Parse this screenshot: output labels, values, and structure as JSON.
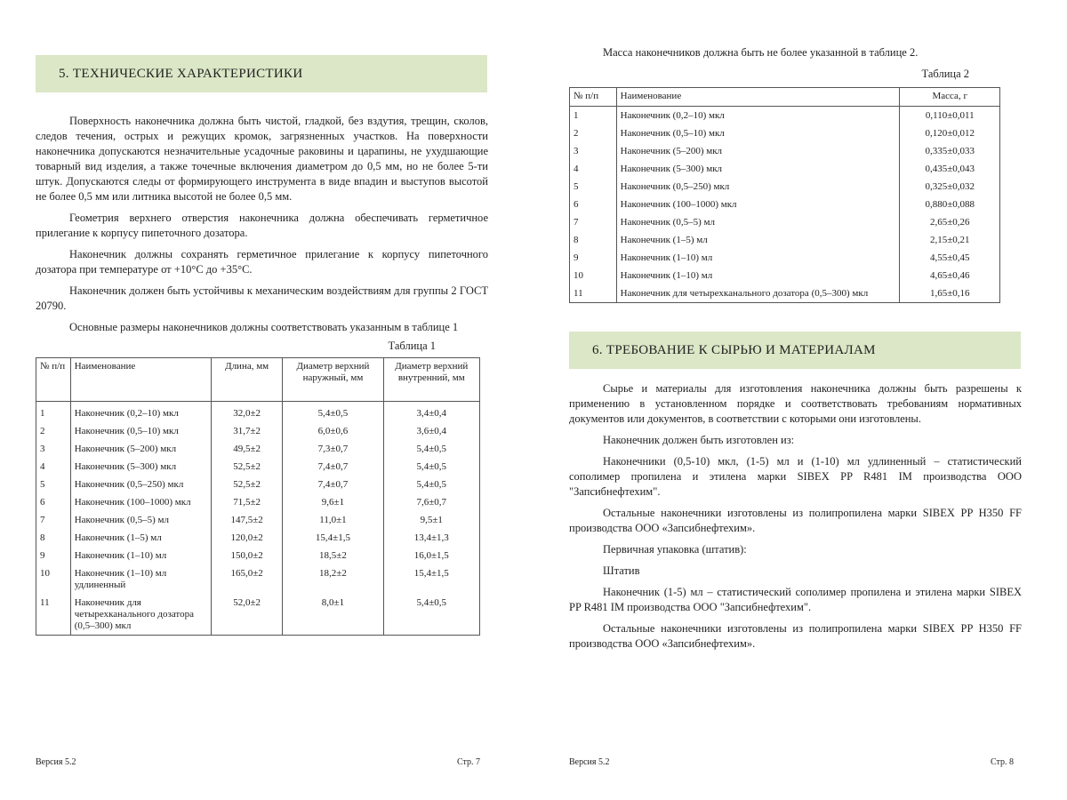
{
  "left": {
    "heading": "5.  ТЕХНИЧЕСКИЕ ХАРАКТЕРИСТИКИ",
    "paragraphs": [
      "Поверхность наконечника должна быть чистой, гладкой, без вздутия, трещин, сколов, следов течения, острых и режущих кромок, загрязненных участков. На поверхности наконечника допускаются незначительные усадочные раковины и царапины, не ухудшающие товарный вид изделия, а также точечные включения диаметром до 0,5 мм, но не более 5-ти штук. Допускаются следы от формирующего инструмента в виде впадин и выступов высотой не более 0,5 мм или литника высотой не более 0,5 мм.",
      "Геометрия верхнего отверстия наконечника должна обеспечивать герметичное прилегание к корпусу пипеточного дозатора.",
      "Наконечник должны сохранять герметичное прилегание к корпусу пипеточного дозатора при температуре от +10°С до +35°С.",
      "Наконечник должен быть устойчивы к механическим воздействиям для группы 2 ГОСТ 20790.",
      "Основные размеры наконечников должны соответствовать указанным в таблице 1"
    ],
    "table_caption": "Таблица 1",
    "table": {
      "header": [
        "№ п/п",
        "Наименование",
        "Длина, мм",
        "Диаметр верхний наружный, мм",
        "Диаметр верхний внутренний, мм"
      ],
      "rows": [
        [
          "1",
          "Наконечник (0,2–10) мкл",
          "32,0±2",
          "5,4±0,5",
          "3,4±0,4"
        ],
        [
          "2",
          "Наконечник (0,5–10) мкл",
          "31,7±2",
          "6,0±0,6",
          "3,6±0,4"
        ],
        [
          "3",
          "Наконечник (5–200) мкл",
          "49,5±2",
          "7,3±0,7",
          "5,4±0,5"
        ],
        [
          "4",
          "Наконечник (5–300) мкл",
          "52,5±2",
          "7,4±0,7",
          "5,4±0,5"
        ],
        [
          "5",
          "Наконечник (0,5–250) мкл",
          "52,5±2",
          "7,4±0,7",
          "5,4±0,5"
        ],
        [
          "6",
          "Наконечник (100–1000) мкл",
          "71,5±2",
          "9,6±1",
          "7,6±0,7"
        ],
        [
          "7",
          "Наконечник (0,5–5) мл",
          "147,5±2",
          "11,0±1",
          "9,5±1"
        ],
        [
          "8",
          "Наконечник (1–5) мл",
          "120,0±2",
          "15,4±1,5",
          "13,4±1,3"
        ],
        [
          "9",
          "Наконечник (1–10) мл",
          "150,0±2",
          "18,5±2",
          "16,0±1,5"
        ],
        [
          "10",
          "Наконечник (1–10) мл удлиненный",
          "165,0±2",
          "18,2±2",
          "15,4±1,5"
        ],
        [
          "11",
          "Наконечник для четырехканального дозатора (0,5–300) мкл",
          "52,0±2",
          "8,0±1",
          "5,4±0,5"
        ]
      ]
    },
    "footer": {
      "version": "Версия 5.2",
      "page": "Стр. 7"
    }
  },
  "right": {
    "intro": "Масса наконечников должна быть не более указанной в таблице 2.",
    "table_caption": "Таблица 2",
    "table": {
      "header": [
        "№ п/п",
        "Наименование",
        "Масса, г"
      ],
      "rows": [
        [
          "1",
          "Наконечник (0,2–10) мкл",
          "0,110±0,011"
        ],
        [
          "2",
          "Наконечник (0,5–10) мкл",
          "0,120±0,012"
        ],
        [
          "3",
          "Наконечник (5–200) мкл",
          "0,335±0,033"
        ],
        [
          "4",
          "Наконечник (5–300) мкл",
          "0,435±0,043"
        ],
        [
          "5",
          "Наконечник (0,5–250) мкл",
          "0,325±0,032"
        ],
        [
          "6",
          "Наконечник (100–1000) мкл",
          "0,880±0,088"
        ],
        [
          "7",
          "Наконечник (0,5–5) мл",
          "2,65±0,26"
        ],
        [
          "8",
          "Наконечник (1–5) мл",
          "2,15±0,21"
        ],
        [
          "9",
          "Наконечник (1–10) мл",
          "4,55±0,45"
        ],
        [
          "10",
          "Наконечник (1–10) мл",
          "4,65±0,46"
        ],
        [
          "11",
          "Наконечник для четырехканального дозатора (0,5–300) мкл",
          "1,65±0,16"
        ]
      ]
    },
    "heading": "6.  ТРЕБОВАНИЕ К СЫРЬЮ И МАТЕРИАЛАМ",
    "paragraphs": [
      "Сырье и материалы для изготовления наконечника должны быть разрешены к применению в установленном порядке и соответствовать требованиям нормативных документов или документов, в соответствии с которыми они изготовлены.",
      "Наконечник должен быть изготовлен из:",
      "Наконечники (0,5-10) мкл, (1-5) мл и (1-10) мл удлиненный – статистический сополимер пропилена и этилена марки SIBEX PP R481 IM производства ООО \"Запсибнефтехим\".",
      "Остальные наконечники изготовлены из полипропилена марки SIBEX PP H350 FF производства ООО «Запсибнефтехим».",
      "Первичная упаковка (штатив):",
      "Штатив",
      "Наконечник (1-5) мл – статистический сополимер пропилена и этилена марки SIBEX PP R481 IM производства ООО \"Запсибнефтехим\".",
      "Остальные наконечники изготовлены из полипропилена марки SIBEX PP H350 FF производства ООО «Запсибнефтехим»."
    ],
    "footer": {
      "version": "Версия 5.2",
      "page": "Стр. 8"
    }
  }
}
